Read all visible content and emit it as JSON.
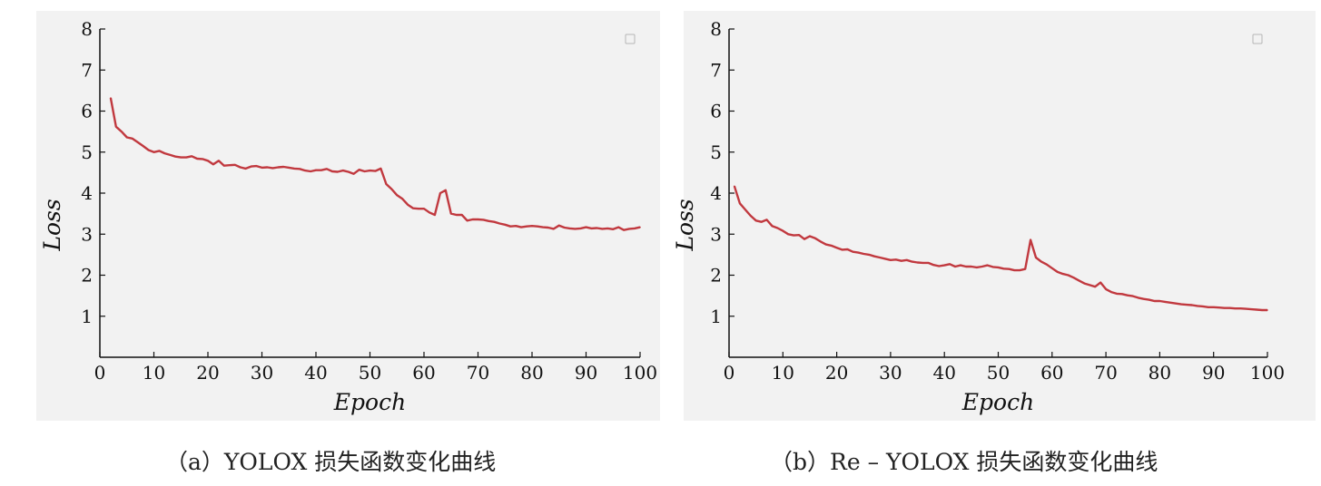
{
  "chart_data": [
    {
      "type": "line",
      "caption": "（a）YOLOX 损失函数变化曲线",
      "xlabel": "Epoch",
      "ylabel": "Loss",
      "xlim": [
        0,
        100
      ],
      "ylim": [
        0,
        8
      ],
      "xticks": [
        0,
        10,
        20,
        30,
        40,
        50,
        60,
        70,
        80,
        90,
        100
      ],
      "yticks": [
        1,
        2,
        3,
        4,
        5,
        6,
        7,
        8
      ],
      "grid": false,
      "legend": "top-right (empty)",
      "line_color": "#c1393f",
      "series": [
        {
          "x": [
            2,
            3,
            4,
            5,
            6,
            7,
            8,
            9,
            10,
            11,
            12,
            13,
            14,
            15,
            16,
            17,
            18,
            19,
            20,
            21,
            22,
            23,
            24,
            25,
            26,
            27,
            28,
            29,
            30,
            31,
            32,
            33,
            34,
            35,
            36,
            37,
            38,
            39,
            40,
            41,
            42,
            43,
            44,
            45,
            46,
            47,
            48,
            49,
            50,
            51,
            52,
            53,
            54,
            55,
            56,
            57,
            58,
            59,
            60,
            61,
            62,
            63,
            64,
            65,
            66,
            67,
            68,
            69,
            70,
            71,
            72,
            73,
            74,
            75,
            76,
            77,
            78,
            79,
            80,
            81,
            82,
            83,
            84,
            85,
            86,
            87,
            88,
            89,
            90,
            91,
            92,
            93,
            94,
            95,
            96,
            97,
            98,
            99,
            100
          ],
          "y": [
            6.32,
            5.62,
            5.5,
            5.36,
            5.33,
            5.24,
            5.15,
            5.05,
            5.0,
            5.03,
            4.97,
            4.93,
            4.89,
            4.87,
            4.87,
            4.9,
            4.84,
            4.83,
            4.79,
            4.7,
            4.79,
            4.67,
            4.68,
            4.69,
            4.63,
            4.6,
            4.65,
            4.66,
            4.62,
            4.63,
            4.61,
            4.63,
            4.64,
            4.62,
            4.6,
            4.59,
            4.55,
            4.53,
            4.56,
            4.56,
            4.59,
            4.53,
            4.52,
            4.55,
            4.52,
            4.47,
            4.57,
            4.53,
            4.55,
            4.54,
            4.6,
            4.22,
            4.1,
            3.95,
            3.86,
            3.72,
            3.63,
            3.62,
            3.62,
            3.53,
            3.47,
            4.0,
            4.07,
            3.5,
            3.47,
            3.47,
            3.33,
            3.36,
            3.36,
            3.35,
            3.32,
            3.3,
            3.26,
            3.23,
            3.19,
            3.2,
            3.17,
            3.19,
            3.2,
            3.19,
            3.17,
            3.16,
            3.13,
            3.21,
            3.16,
            3.14,
            3.13,
            3.14,
            3.17,
            3.14,
            3.15,
            3.13,
            3.14,
            3.12,
            3.17,
            3.1,
            3.13,
            3.14,
            3.17
          ]
        }
      ]
    },
    {
      "type": "line",
      "caption": "（b）Re – YOLOX 损失函数变化曲线",
      "xlabel": "Epoch",
      "ylabel": "Loss",
      "xlim": [
        0,
        100
      ],
      "ylim": [
        0,
        8
      ],
      "xticks": [
        0,
        10,
        20,
        30,
        40,
        50,
        60,
        70,
        80,
        90,
        100
      ],
      "yticks": [
        1,
        2,
        3,
        4,
        5,
        6,
        7,
        8
      ],
      "grid": false,
      "legend": "top-right (empty)",
      "line_color": "#c1393f",
      "series": [
        {
          "x": [
            1,
            2,
            3,
            4,
            5,
            6,
            7,
            8,
            9,
            10,
            11,
            12,
            13,
            14,
            15,
            16,
            17,
            18,
            19,
            20,
            21,
            22,
            23,
            24,
            25,
            26,
            27,
            28,
            29,
            30,
            31,
            32,
            33,
            34,
            35,
            36,
            37,
            38,
            39,
            40,
            41,
            42,
            43,
            44,
            45,
            46,
            47,
            48,
            49,
            50,
            51,
            52,
            53,
            54,
            55,
            56,
            57,
            58,
            59,
            60,
            61,
            62,
            63,
            64,
            65,
            66,
            67,
            68,
            69,
            70,
            71,
            72,
            73,
            74,
            75,
            76,
            77,
            78,
            79,
            80,
            81,
            82,
            83,
            84,
            85,
            86,
            87,
            88,
            89,
            90,
            91,
            92,
            93,
            94,
            95,
            96,
            97,
            98,
            99,
            100
          ],
          "y": [
            4.17,
            3.75,
            3.6,
            3.45,
            3.33,
            3.3,
            3.35,
            3.2,
            3.15,
            3.08,
            3.0,
            2.97,
            2.98,
            2.88,
            2.95,
            2.9,
            2.82,
            2.75,
            2.72,
            2.67,
            2.62,
            2.63,
            2.57,
            2.55,
            2.52,
            2.5,
            2.46,
            2.43,
            2.4,
            2.37,
            2.38,
            2.35,
            2.37,
            2.33,
            2.31,
            2.3,
            2.3,
            2.25,
            2.22,
            2.24,
            2.27,
            2.21,
            2.24,
            2.21,
            2.21,
            2.19,
            2.21,
            2.24,
            2.2,
            2.19,
            2.16,
            2.15,
            2.12,
            2.12,
            2.15,
            2.86,
            2.43,
            2.33,
            2.26,
            2.17,
            2.08,
            2.03,
            2.0,
            1.94,
            1.87,
            1.8,
            1.76,
            1.72,
            1.82,
            1.66,
            1.59,
            1.55,
            1.54,
            1.51,
            1.49,
            1.45,
            1.42,
            1.4,
            1.37,
            1.37,
            1.35,
            1.33,
            1.31,
            1.29,
            1.28,
            1.27,
            1.25,
            1.24,
            1.22,
            1.22,
            1.21,
            1.2,
            1.2,
            1.19,
            1.19,
            1.18,
            1.17,
            1.16,
            1.15,
            1.15
          ]
        }
      ]
    }
  ]
}
